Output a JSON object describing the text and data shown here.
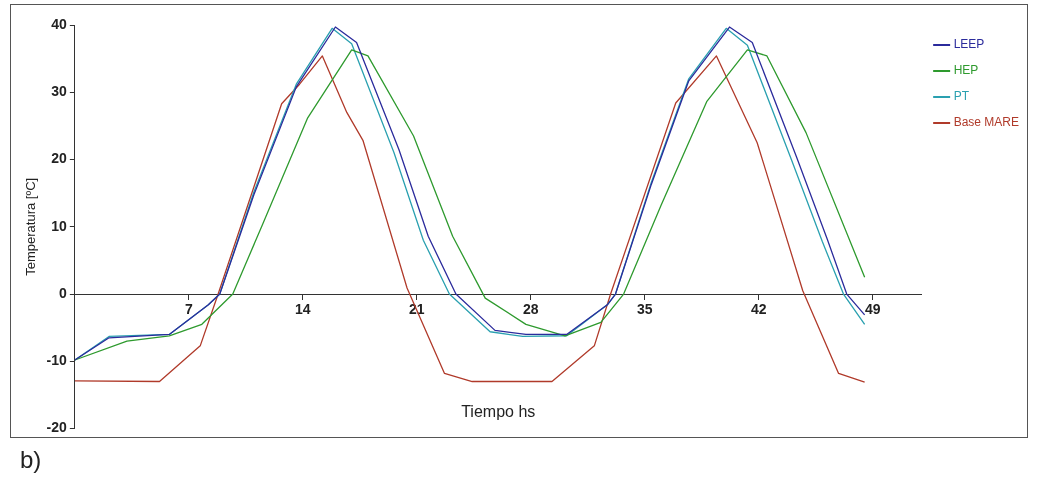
{
  "chart_data": {
    "type": "line",
    "xlabel": "Tiempo hs",
    "ylabel": "Temperatura [ºC]",
    "annotations": [
      "b)"
    ],
    "xlim": [
      0,
      52
    ],
    "xticks": [
      7,
      14,
      21,
      28,
      35,
      42,
      49
    ],
    "ylim": [
      -20,
      40
    ],
    "yticks": [
      -20,
      -10,
      0,
      10,
      20,
      30,
      40
    ],
    "grid": false,
    "legend": "top right",
    "marker": "none",
    "line_style": "solid",
    "series": [
      {
        "name": "LEEP",
        "color": "#2b2b9c",
        "x": [
          0,
          2.1,
          5.8,
          8.2,
          8.9,
          11,
          13.6,
          16,
          17.3,
          19.9,
          21.7,
          23.4,
          25.8,
          27.7,
          30.2,
          32.7,
          33.2,
          35.4,
          37.7,
          40.2,
          41.6,
          44.3,
          46.2,
          47.4,
          48.5
        ],
        "values": [
          -9.8,
          -6.5,
          -6,
          -1.6,
          0,
          14.8,
          30.8,
          39.7,
          37.4,
          21.5,
          8.6,
          0,
          -5.4,
          -6,
          -6,
          -1.6,
          0,
          16.3,
          31.7,
          39.7,
          37.4,
          20.5,
          8.2,
          0,
          -3.1
        ]
      },
      {
        "name": "HEP",
        "color": "#2e9a2e",
        "x": [
          0,
          3.2,
          5.8,
          7.8,
          9.7,
          11.5,
          14.3,
          17,
          18,
          20.8,
          23.2,
          25.2,
          27.7,
          30.1,
          32.3,
          33.7,
          36,
          38.8,
          41.3,
          42.5,
          44.9,
          48.5
        ],
        "values": [
          -9.8,
          -7,
          -6.2,
          -4.5,
          0,
          10.2,
          26.2,
          36.3,
          35.4,
          23.5,
          8.6,
          -0.6,
          -4.5,
          -6.2,
          -4.2,
          0,
          13.2,
          28.6,
          36.3,
          35.4,
          24,
          2.5
        ]
      },
      {
        "name": "PT",
        "color": "#2aa0b0",
        "x": [
          0,
          2.1,
          5.8,
          8.2,
          8.9,
          11,
          13.6,
          15.8,
          17,
          19.6,
          21.4,
          23,
          25.5,
          27.5,
          30.2,
          32.7,
          33.2,
          35.4,
          37.7,
          40,
          41.3,
          44,
          45.9,
          47.2,
          48.5
        ],
        "values": [
          -9.8,
          -6.3,
          -6,
          -1.6,
          0,
          15.2,
          31.2,
          39.5,
          37.2,
          21,
          8,
          0,
          -5.6,
          -6.3,
          -6.2,
          -1.6,
          0,
          16.6,
          32,
          39.5,
          37,
          20,
          7.8,
          0,
          -4.5
        ]
      },
      {
        "name": "Base MARE",
        "color": "#b03a2a",
        "x": [
          0,
          5.2,
          7.7,
          8.8,
          12.7,
          13.8,
          15.2,
          16.7,
          17.7,
          20.4,
          22.7,
          24.4,
          29.3,
          31.9,
          32.9,
          36.9,
          39.4,
          41.9,
          44.7,
          46.9,
          48.5
        ],
        "values": [
          -12.9,
          -13,
          -7.7,
          0,
          28.3,
          31.2,
          35.4,
          27,
          22.8,
          0.9,
          -11.8,
          -13,
          -13,
          -7.7,
          0,
          28.4,
          35.4,
          22.5,
          0.5,
          -11.8,
          -13.1
        ]
      }
    ]
  }
}
